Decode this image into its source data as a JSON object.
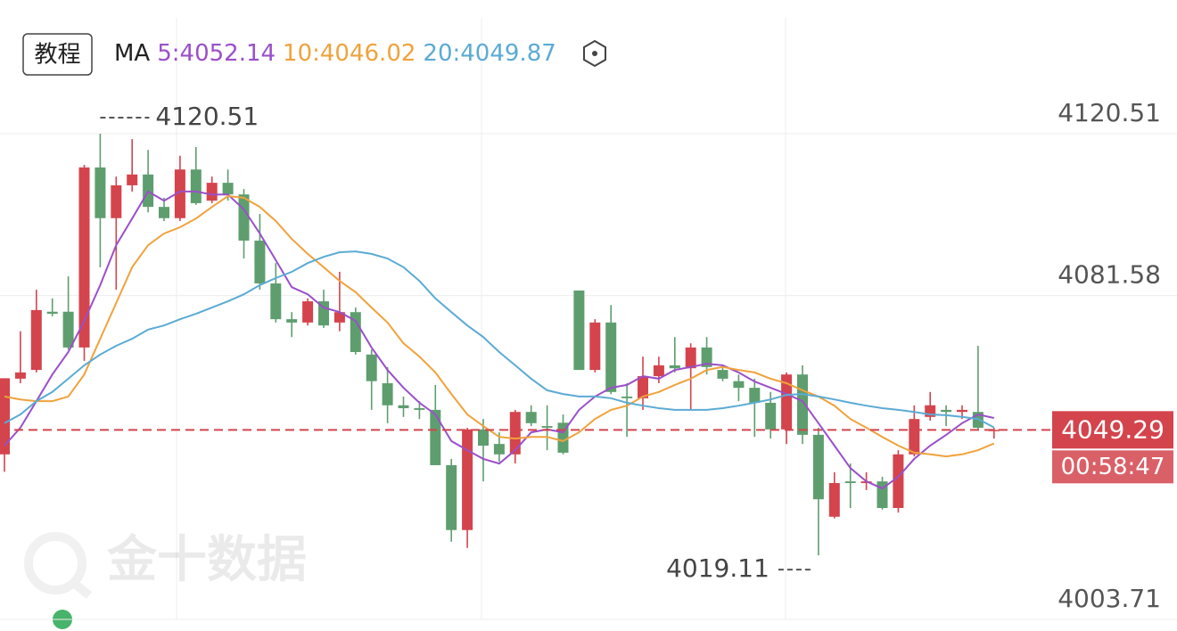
{
  "chart_data": {
    "type": "candlestick",
    "tutorial_button": "教程",
    "ma_label": "MA",
    "watermark": "金十数据",
    "up_color": "#d4444c",
    "down_color": "#5e9e6e",
    "ylim": [
      4003.71,
      4120.51
    ],
    "yticks": [
      4120.51,
      4081.58,
      4003.71
    ],
    "grid": true,
    "high_label": 4120.51,
    "low_label": 4019.11,
    "current_price": 4049.29,
    "countdown": "00:58:47",
    "price_color": "#d4444c",
    "open": [
      4043.4,
      4061.6,
      4063.7,
      4077.7,
      4077.7,
      4069.1,
      4112.4,
      4100.2,
      4108.1,
      4110.7,
      4102.9,
      4100.2,
      4111.9,
      4104.4,
      4108.7,
      4105.9,
      4094.8,
      4084.5,
      4075.9,
      4075.1,
      4080.2,
      4075.1,
      4077.6,
      4067.4,
      4060.5,
      4055.2,
      4054.5,
      4054.1,
      4040.8,
      4025.2,
      4049.4,
      4045.9,
      4043.4,
      4053.6,
      4050.2,
      4051.0,
      4082.8,
      4063.7,
      4075.1,
      4057.3,
      4056.9,
      4062.2,
      4064.8,
      4064.1,
      4069.1,
      4063.7,
      4061.0,
      4059.4,
      4055.8,
      4049.4,
      4062.6,
      4048.1,
      4028.4,
      4036.9,
      4036.5,
      4036.9,
      4030.5,
      4043.4,
      4052.4,
      4054.1,
      4053.6,
      4053.6,
      4049.0
    ],
    "close": [
      4061.7,
      4063.1,
      4078.1,
      4077.2,
      4069.1,
      4112.4,
      4100.2,
      4108.1,
      4110.7,
      4102.9,
      4100.2,
      4111.9,
      4103.8,
      4108.7,
      4105.9,
      4094.8,
      4084.5,
      4075.9,
      4075.1,
      4080.2,
      4074.4,
      4077.6,
      4068.0,
      4061.0,
      4055.2,
      4054.5,
      4054.1,
      4040.8,
      4025.2,
      4049.4,
      4045.5,
      4043.4,
      4053.6,
      4050.9,
      4049.8,
      4043.8,
      4063.7,
      4075.1,
      4058.4,
      4056.9,
      4062.2,
      4064.8,
      4064.1,
      4069.1,
      4064.4,
      4061.6,
      4059.4,
      4055.8,
      4049.4,
      4062.6,
      4048.1,
      4032.6,
      4036.5,
      4036.5,
      4036.9,
      4030.5,
      4043.4,
      4051.9,
      4055.2,
      4053.6,
      4054.1,
      4049.8,
      4049.29
    ],
    "high": [
      4061.7,
      4073.0,
      4083.0,
      4080.9,
      4086.2,
      4113.0,
      4120.51,
      4110.2,
      4119.2,
      4116.6,
      4105.1,
      4115.2,
      4117.3,
      4110.2,
      4111.9,
      4107.2,
      4101.2,
      4089.4,
      4077.6,
      4080.9,
      4083.0,
      4087.3,
      4078.7,
      4068.6,
      4064.4,
      4057.3,
      4056.2,
      4060.1,
      4042.3,
      4049.8,
      4051.9,
      4048.7,
      4054.1,
      4055.2,
      4055.2,
      4053.0,
      4082.8,
      4075.9,
      4079.3,
      4060.5,
      4066.9,
      4066.9,
      4071.6,
      4070.1,
      4071.6,
      4064.8,
      4062.6,
      4061.6,
      4058.4,
      4063.1,
      4064.8,
      4049.8,
      4039.1,
      4041.2,
      4039.1,
      4038.0,
      4044.4,
      4055.2,
      4058.4,
      4055.2,
      4055.2,
      4069.5,
      4049.8
    ],
    "low": [
      4039.2,
      4060.5,
      4063.1,
      4076.6,
      4068.6,
      4065.9,
      4088.4,
      4083.0,
      4106.6,
      4101.6,
      4099.5,
      4099.5,
      4103.4,
      4103.8,
      4104.4,
      4090.5,
      4083.0,
      4075.1,
      4071.6,
      4074.4,
      4073.8,
      4073.0,
      4067.4,
      4054.1,
      4050.9,
      4052.4,
      4051.9,
      4040.8,
      4022.4,
      4020.9,
      4036.9,
      4041.6,
      4041.2,
      4050.2,
      4044.4,
      4043.4,
      4063.7,
      4063.1,
      4057.9,
      4047.6,
      4054.1,
      4060.5,
      4063.1,
      4054.1,
      4062.6,
      4061.0,
      4056.2,
      4047.6,
      4047.2,
      4045.9,
      4045.9,
      4019.11,
      4028.0,
      4030.5,
      4034.8,
      4030.1,
      4029.4,
      4042.9,
      4051.5,
      4050.2,
      4051.9,
      4049.4,
      4047.2
    ],
    "series": [
      {
        "name": "5:4052.14",
        "color": "#9b4fc9",
        "values": [
          4045.5,
          4049.8,
          4056.2,
          4062.6,
          4068.0,
          4075.5,
          4084.1,
          4093.7,
          4100.1,
          4106.6,
          4104.4,
          4106.6,
          4106.6,
          4105.9,
          4105.9,
          4102.3,
          4096.5,
          4090.1,
          4083.6,
          4081.9,
          4078.7,
          4077.6,
          4075.5,
          4069.1,
          4063.7,
          4059.4,
          4055.8,
          4053.0,
          4046.6,
          4044.4,
          4042.3,
          4041.2,
          4044.4,
          4048.7,
          4049.4,
          4048.7,
          4054.1,
          4057.3,
          4059.4,
          4060.1,
          4062.2,
          4061.6,
          4063.7,
          4064.4,
          4065.2,
          4064.8,
          4063.1,
          4060.9,
          4059.4,
          4057.9,
          4056.2,
          4050.9,
          4045.5,
          4040.1,
          4036.9,
          4035.2,
          4038.0,
          4042.3,
          4045.5,
          4048.1,
          4050.9,
          4053.0,
          4052.14
        ]
      },
      {
        "name": "10:4046.02",
        "color": "#f0a23c",
        "values": [
          4057.3,
          4056.6,
          4056.2,
          4056.2,
          4057.3,
          4062.6,
          4071.2,
          4079.8,
          4088.4,
          4093.7,
          4096.5,
          4098.0,
          4100.1,
          4102.9,
          4105.5,
          4105.1,
          4102.9,
          4099.5,
          4095.2,
          4091.6,
          4088.4,
          4085.1,
          4082.4,
          4078.7,
          4075.1,
          4070.1,
          4066.9,
          4063.1,
          4057.9,
          4053.0,
          4050.2,
          4047.6,
          4047.2,
          4047.6,
          4047.6,
          4046.6,
          4048.7,
          4051.9,
          4054.1,
          4055.1,
          4057.3,
          4058.4,
          4060.1,
          4061.6,
          4063.7,
          4064.4,
          4063.7,
          4063.1,
          4061.6,
          4060.5,
          4058.8,
          4057.3,
          4055.1,
          4051.9,
          4049.8,
          4047.6,
          4045.5,
          4043.8,
          4043.4,
          4042.9,
          4043.4,
          4044.4,
          4046.02
        ]
      },
      {
        "name": "20:4049.87",
        "color": "#5aabd4",
        "values": [
          4050.9,
          4053.0,
          4056.2,
          4058.4,
          4061.6,
          4064.8,
          4067.4,
          4069.5,
          4071.2,
          4073.4,
          4074.4,
          4075.9,
          4077.2,
          4078.7,
          4080.2,
          4081.9,
          4084.1,
          4085.8,
          4087.3,
          4089.4,
          4090.9,
          4092.0,
          4092.2,
          4091.6,
          4090.5,
          4088.4,
          4085.1,
          4080.9,
          4077.6,
          4074.4,
          4071.6,
          4068.0,
          4064.8,
          4061.6,
          4058.8,
          4057.9,
          4057.3,
          4057.3,
          4056.9,
          4055.8,
          4055.1,
          4054.5,
          4054.1,
          4054.1,
          4054.1,
          4054.5,
          4055.1,
          4055.8,
          4056.6,
          4057.7,
          4057.9,
          4057.3,
          4056.6,
          4055.8,
          4055.1,
          4054.5,
          4054.1,
          4053.6,
          4053.0,
          4052.8,
          4052.4,
          4051.9,
          4049.87
        ]
      }
    ]
  }
}
